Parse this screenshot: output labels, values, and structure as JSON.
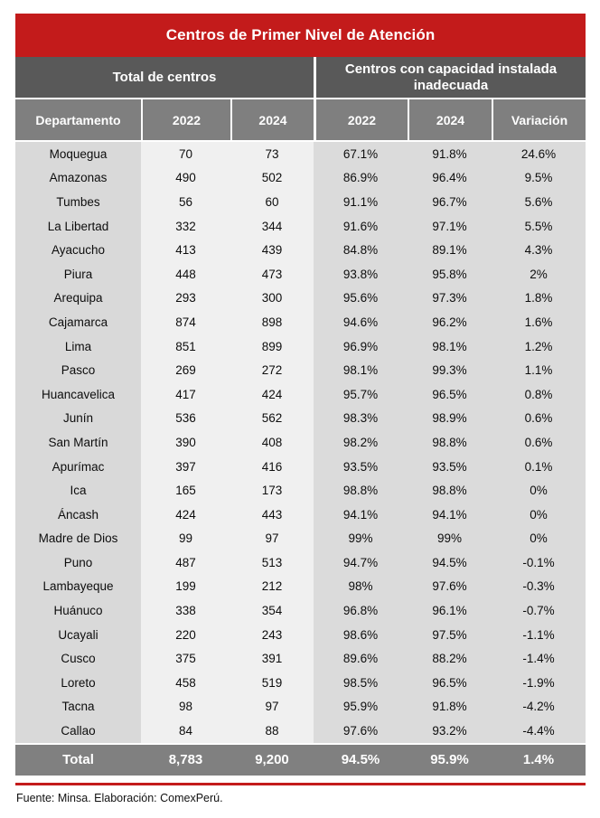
{
  "chart_data": {
    "type": "table",
    "title": "Centros de Primer Nivel de Atención",
    "group_headers": {
      "left": "Total de centros",
      "right": "Centros con capacidad instalada inadecuada"
    },
    "columns": [
      "Departamento",
      "2022",
      "2024",
      "2022",
      "2024",
      "Variación"
    ],
    "rows": [
      {
        "name": "Moquegua",
        "values": [
          "70",
          "73",
          "67.1%",
          "91.8%",
          "24.6%"
        ]
      },
      {
        "name": "Amazonas",
        "values": [
          "490",
          "502",
          "86.9%",
          "96.4%",
          "9.5%"
        ]
      },
      {
        "name": "Tumbes",
        "values": [
          "56",
          "60",
          "91.1%",
          "96.7%",
          "5.6%"
        ]
      },
      {
        "name": "La Libertad",
        "values": [
          "332",
          "344",
          "91.6%",
          "97.1%",
          "5.5%"
        ]
      },
      {
        "name": "Ayacucho",
        "values": [
          "413",
          "439",
          "84.8%",
          "89.1%",
          "4.3%"
        ]
      },
      {
        "name": "Piura",
        "values": [
          "448",
          "473",
          "93.8%",
          "95.8%",
          "2%"
        ]
      },
      {
        "name": "Arequipa",
        "values": [
          "293",
          "300",
          "95.6%",
          "97.3%",
          "1.8%"
        ]
      },
      {
        "name": "Cajamarca",
        "values": [
          "874",
          "898",
          "94.6%",
          "96.2%",
          "1.6%"
        ]
      },
      {
        "name": "Lima",
        "values": [
          "851",
          "899",
          "96.9%",
          "98.1%",
          "1.2%"
        ]
      },
      {
        "name": "Pasco",
        "values": [
          "269",
          "272",
          "98.1%",
          "99.3%",
          "1.1%"
        ]
      },
      {
        "name": "Huancavelica",
        "values": [
          "417",
          "424",
          "95.7%",
          "96.5%",
          "0.8%"
        ]
      },
      {
        "name": "Junín",
        "values": [
          "536",
          "562",
          "98.3%",
          "98.9%",
          "0.6%"
        ]
      },
      {
        "name": "San Martín",
        "values": [
          "390",
          "408",
          "98.2%",
          "98.8%",
          "0.6%"
        ]
      },
      {
        "name": "Apurímac",
        "values": [
          "397",
          "416",
          "93.5%",
          "93.5%",
          "0.1%"
        ]
      },
      {
        "name": "Ica",
        "values": [
          "165",
          "173",
          "98.8%",
          "98.8%",
          "0%"
        ]
      },
      {
        "name": "Áncash",
        "values": [
          "424",
          "443",
          "94.1%",
          "94.1%",
          "0%"
        ]
      },
      {
        "name": "Madre de Dios",
        "values": [
          "99",
          "97",
          "99%",
          "99%",
          "0%"
        ]
      },
      {
        "name": "Puno",
        "values": [
          "487",
          "513",
          "94.7%",
          "94.5%",
          "-0.1%"
        ]
      },
      {
        "name": "Lambayeque",
        "values": [
          "199",
          "212",
          "98%",
          "97.6%",
          "-0.3%"
        ]
      },
      {
        "name": "Huánuco",
        "values": [
          "338",
          "354",
          "96.8%",
          "96.1%",
          "-0.7%"
        ]
      },
      {
        "name": "Ucayali",
        "values": [
          "220",
          "243",
          "98.6%",
          "97.5%",
          "-1.1%"
        ]
      },
      {
        "name": "Cusco",
        "values": [
          "375",
          "391",
          "89.6%",
          "88.2%",
          "-1.4%"
        ]
      },
      {
        "name": "Loreto",
        "values": [
          "458",
          "519",
          "98.5%",
          "96.5%",
          "-1.9%"
        ]
      },
      {
        "name": "Tacna",
        "values": [
          "98",
          "97",
          "95.9%",
          "91.8%",
          "-4.2%"
        ]
      },
      {
        "name": "Callao",
        "values": [
          "84",
          "88",
          "97.6%",
          "93.2%",
          "-4.4%"
        ]
      }
    ],
    "total_row": {
      "label": "Total",
      "values": [
        "8,783",
        "9,200",
        "94.5%",
        "95.9%",
        "1.4%"
      ]
    },
    "source_note": "Fuente: Minsa. Elaboración: ComexPerú."
  },
  "colors": {
    "title_bg": "#C31B1B",
    "group_band_bg": "#595959",
    "header_row_bg": "#7F7F7F",
    "total_row_bg": "#808080",
    "department_col_bg": "#D9D9D9",
    "left_cols_bg": "#F0F0F0",
    "right_cols_bg": "#DBDBDB",
    "rule": "#C31B1B",
    "text_on_dark": "#FFFFFF",
    "body_text": "#0D0D0D"
  }
}
